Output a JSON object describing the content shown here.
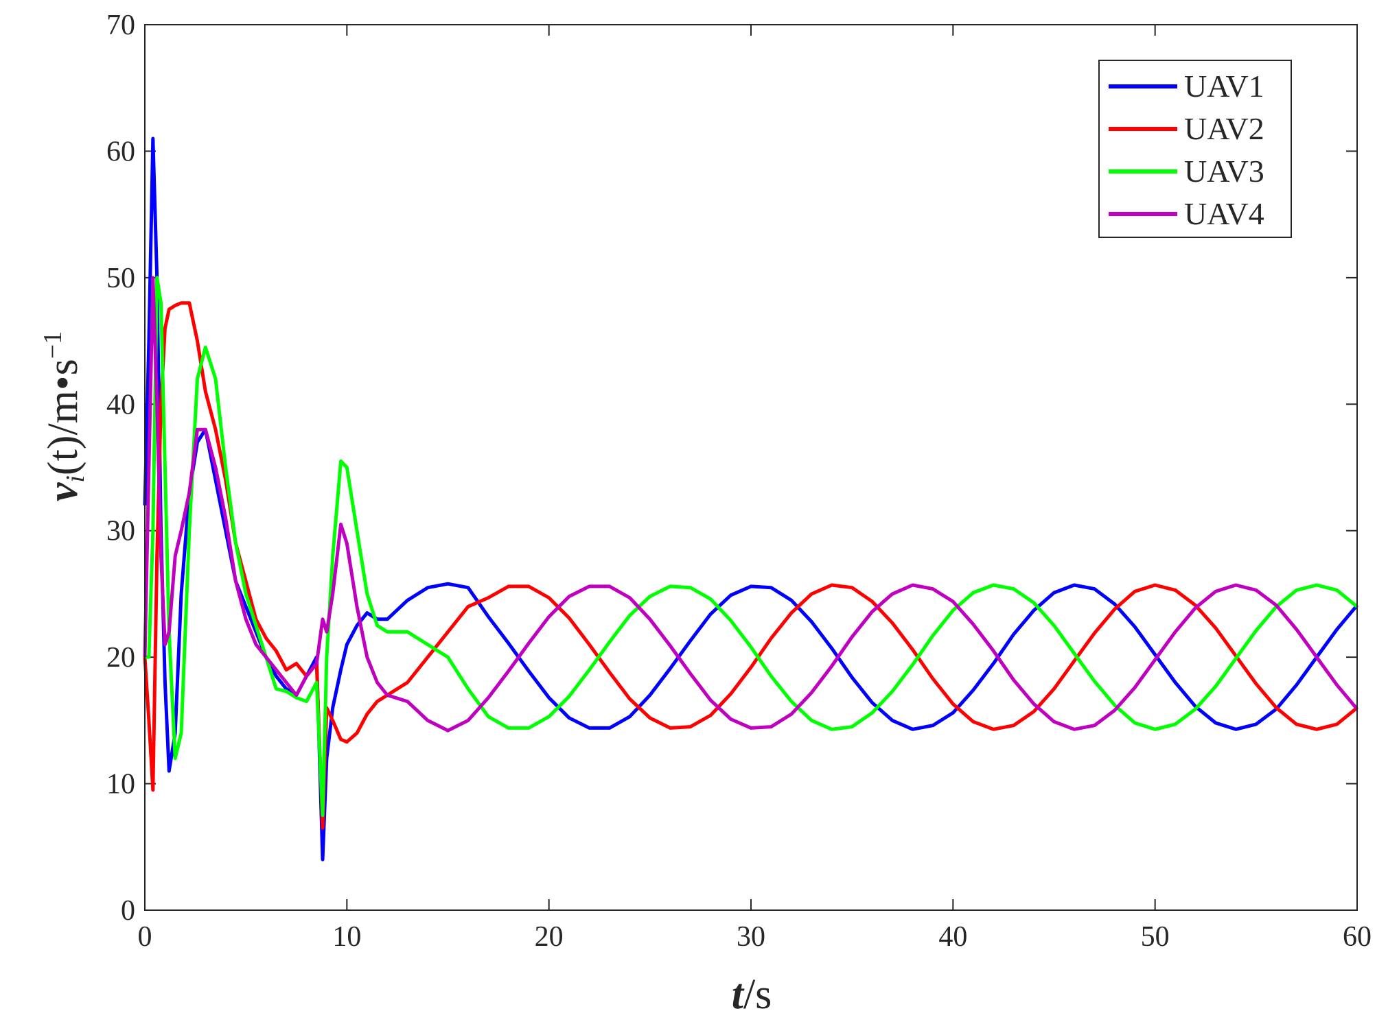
{
  "chart_data": {
    "type": "line",
    "xlabel_parts": [
      "t",
      "/s"
    ],
    "ylabel_parts": [
      "v",
      "i",
      "(t)/m•s",
      "−1"
    ],
    "x": [
      0,
      0.2,
      0.4,
      0.6,
      0.8,
      1,
      1.2,
      1.5,
      1.8,
      2.2,
      2.6,
      3,
      3.5,
      4,
      4.5,
      5,
      5.5,
      6,
      6.5,
      7,
      7.5,
      8,
      8.5,
      8.8,
      9,
      9.3,
      9.7,
      10,
      10.5,
      11,
      11.5,
      12,
      13,
      14,
      15,
      16,
      17,
      18,
      19,
      20,
      21,
      22,
      23,
      24,
      25,
      26,
      27,
      28,
      29,
      30,
      31,
      32,
      33,
      34,
      35,
      36,
      37,
      38,
      39,
      40,
      41,
      42,
      43,
      44,
      45,
      46,
      47,
      48,
      49,
      50,
      51,
      52,
      53,
      54,
      55,
      56,
      57,
      58,
      59,
      60
    ],
    "series": [
      {
        "name": "UAV1",
        "color": "#0000ff",
        "values": [
          32,
          45,
          61,
          50,
          30,
          18,
          11,
          14,
          25,
          33,
          37,
          38,
          34,
          30,
          26,
          24,
          22,
          20,
          18.5,
          17.5,
          17,
          18.5,
          20,
          4,
          12,
          16,
          19,
          21,
          22.5,
          23.5,
          23,
          23,
          24.5,
          25.5,
          25.8,
          25.5,
          23.2,
          21.1,
          18.9,
          16.8,
          15.2,
          14.4,
          14.4,
          15.3,
          17.0,
          19.1,
          21.3,
          23.4,
          24.9,
          25.6,
          25.5,
          24.5,
          22.8,
          20.7,
          18.4,
          16.4,
          15.0,
          14.3,
          14.6,
          15.6,
          17.4,
          19.5,
          21.8,
          23.7,
          25.1,
          25.7,
          25.4,
          24.2,
          22.4,
          20.2,
          18.0,
          16.1,
          14.8,
          14.3,
          14.7,
          15.9,
          17.8,
          20.0,
          22.2,
          24.1
        ]
      },
      {
        "name": "UAV2",
        "color": "#ff0000",
        "values": [
          20,
          15,
          9.5,
          28,
          40,
          46,
          47.5,
          47.8,
          48,
          48,
          45,
          41,
          38,
          34,
          29,
          26,
          23,
          21.5,
          20.5,
          19,
          19.5,
          18.5,
          19.5,
          6.5,
          16,
          15,
          13.5,
          13.3,
          14,
          15.5,
          16.5,
          17,
          18,
          20,
          22,
          24,
          24.7,
          25.6,
          25.6,
          24.7,
          23.1,
          21.0,
          18.8,
          16.7,
          15.2,
          14.4,
          14.5,
          15.4,
          17.1,
          19.2,
          21.5,
          23.5,
          25.0,
          25.7,
          25.5,
          24.4,
          22.7,
          20.6,
          18.3,
          16.3,
          14.9,
          14.3,
          14.6,
          15.7,
          17.5,
          19.7,
          21.9,
          23.8,
          25.2,
          25.7,
          25.3,
          24.1,
          22.3,
          20.1,
          17.9,
          16.0,
          14.7,
          14.3,
          14.7,
          16.0
        ]
      },
      {
        "name": "UAV3",
        "color": "#00ff00",
        "values": [
          20,
          20,
          30,
          50,
          48,
          35,
          22,
          12,
          14,
          30,
          42,
          44.5,
          42,
          35,
          29,
          25,
          22.5,
          20,
          17.5,
          17.3,
          16.8,
          16.5,
          18,
          7.5,
          20,
          28,
          35.5,
          35,
          30,
          25,
          22.5,
          22,
          22,
          21,
          20,
          17.5,
          15.3,
          14.4,
          14.4,
          15.3,
          16.9,
          19.0,
          21.2,
          23.3,
          24.8,
          25.6,
          25.5,
          24.6,
          22.9,
          20.8,
          18.5,
          16.5,
          15.0,
          14.3,
          14.5,
          15.6,
          17.3,
          19.4,
          21.7,
          23.7,
          25.1,
          25.7,
          25.4,
          24.3,
          22.5,
          20.3,
          18.1,
          16.2,
          14.8,
          14.3,
          14.7,
          15.9,
          17.7,
          19.9,
          22.1,
          24.0,
          25.3,
          25.7,
          25.3,
          24.0
        ]
      },
      {
        "name": "UAV4",
        "color": "#bf00bf",
        "values": [
          20,
          35,
          50,
          40,
          28,
          21,
          22,
          28,
          30,
          33,
          38,
          38,
          35,
          31,
          26,
          23,
          21,
          20,
          19,
          18,
          17,
          18.5,
          19.5,
          23,
          22,
          25,
          30.5,
          29,
          24,
          20,
          18,
          17,
          16.5,
          15,
          14.2,
          15,
          16.8,
          18.9,
          21.1,
          23.2,
          24.8,
          25.6,
          25.6,
          24.7,
          23.0,
          20.9,
          18.7,
          16.6,
          15.1,
          14.4,
          14.5,
          15.5,
          17.2,
          19.3,
          21.6,
          23.6,
          25.0,
          25.7,
          25.4,
          24.4,
          22.6,
          20.5,
          18.2,
          16.3,
          14.9,
          14.3,
          14.6,
          15.8,
          17.6,
          19.8,
          22.0,
          23.9,
          25.2,
          25.7,
          25.3,
          24.1,
          22.2,
          20.0,
          17.8,
          15.9
        ]
      }
    ],
    "xlim": [
      0,
      60
    ],
    "xticks": [
      0,
      10,
      20,
      30,
      40,
      50,
      60
    ],
    "ylim": [
      0,
      70
    ],
    "yticks": [
      0,
      10,
      20,
      30,
      40,
      50,
      60,
      70
    ],
    "grid": false,
    "legend": "upper right"
  }
}
